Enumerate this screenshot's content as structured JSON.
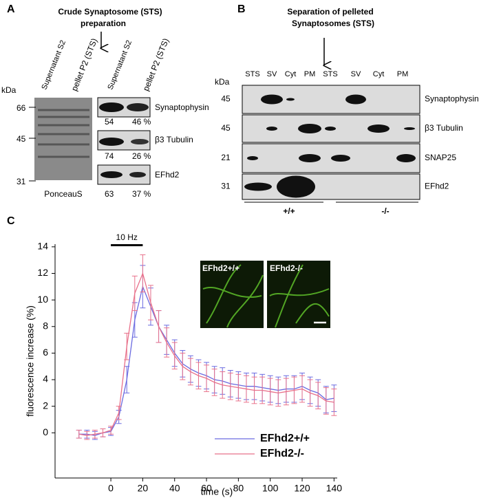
{
  "panel_a": {
    "label": "A",
    "title": [
      "Crude Synaptosome (STS)",
      "preparation"
    ],
    "lanes": [
      "Supernatant S2",
      "pellet P2 (STS)",
      "Supernatant S2",
      "pellet P2 (STS)"
    ],
    "kda": "kDa",
    "markers": [
      "66",
      "45",
      "31"
    ],
    "stain": "PonceauS",
    "blots": [
      {
        "name": "Synaptophysin",
        "percent": [
          "54",
          "46 %"
        ]
      },
      {
        "name": "β3 Tubulin",
        "percent": [
          "74",
          "26 %"
        ]
      },
      {
        "name": "EFhd2",
        "percent": [
          "63",
          "37 %"
        ]
      }
    ]
  },
  "panel_b": {
    "label": "B",
    "title": [
      "Separation of  pelleted",
      "Synaptosomes (STS)"
    ],
    "lanes": [
      "STS",
      "SV",
      "Cyt",
      "PM",
      "STS",
      "SV",
      "Cyt",
      "PM"
    ],
    "kda": "kDa",
    "blots": [
      {
        "name": "Synaptophysin",
        "marker": "45"
      },
      {
        "name": "β3 Tubulin",
        "marker": "45"
      },
      {
        "name": "SNAP25",
        "marker": "21"
      },
      {
        "name": "EFhd2",
        "marker": "31"
      }
    ],
    "genotypes": [
      "+/+",
      "-/-"
    ]
  },
  "panel_c": {
    "label": "C",
    "images": [
      "EFhd2+/+",
      "EFhd2-/-"
    ]
  },
  "chart_data": {
    "type": "line",
    "xlabel": "time (s)",
    "ylabel": "fluorescence increase (%)",
    "stimulus": {
      "label": "10 Hz",
      "x": [
        0,
        20
      ]
    },
    "x": [
      -20,
      -15,
      -10,
      -5,
      0,
      5,
      10,
      15,
      20,
      25,
      30,
      35,
      40,
      45,
      50,
      55,
      60,
      65,
      70,
      75,
      80,
      85,
      90,
      95,
      100,
      105,
      110,
      115,
      120,
      125,
      130,
      135,
      140
    ],
    "series": [
      {
        "name": "EFhd2+/+",
        "color": "#6a6ae0",
        "values": [
          -0.1,
          -0.1,
          -0.2,
          0,
          0.1,
          1.2,
          4.0,
          8.5,
          11.0,
          9.5,
          8.0,
          7.0,
          6.0,
          5.2,
          4.8,
          4.5,
          4.3,
          4.0,
          3.9,
          3.7,
          3.6,
          3.5,
          3.5,
          3.4,
          3.3,
          3.2,
          3.3,
          3.3,
          3.5,
          3.2,
          3.0,
          2.5,
          2.6
        ],
        "errors": [
          0.3,
          0.3,
          0.3,
          0.3,
          0.3,
          0.5,
          1.0,
          1.3,
          1.6,
          1.4,
          1.2,
          1.1,
          1.0,
          1.0,
          1.0,
          1.0,
          1.0,
          1.0,
          1.0,
          1.0,
          1.0,
          1.0,
          1.0,
          1.0,
          1.0,
          1.0,
          1.0,
          1.0,
          1.0,
          1.0,
          1.0,
          1.0,
          1.0
        ]
      },
      {
        "name": "EFhd2-/-",
        "color": "#e8708a",
        "values": [
          -0.1,
          -0.2,
          -0.1,
          0,
          0.2,
          1.5,
          6.5,
          10.5,
          12.0,
          9.8,
          8.0,
          6.8,
          5.8,
          5.0,
          4.6,
          4.3,
          4.1,
          3.8,
          3.6,
          3.5,
          3.4,
          3.3,
          3.2,
          3.2,
          3.1,
          3.0,
          3.1,
          3.2,
          3.3,
          3.0,
          2.8,
          2.4,
          2.3
        ],
        "errors": [
          0.3,
          0.3,
          0.3,
          0.3,
          0.3,
          0.5,
          1.0,
          1.3,
          1.4,
          1.3,
          1.2,
          1.1,
          1.0,
          1.0,
          1.0,
          1.0,
          1.0,
          1.0,
          1.0,
          1.0,
          1.0,
          1.0,
          1.0,
          1.0,
          1.0,
          1.0,
          1.0,
          1.0,
          1.0,
          1.0,
          1.0,
          1.0,
          1.0
        ]
      }
    ],
    "xlim": [
      -35,
      142
    ],
    "ylim": [
      -3.4,
      14.2
    ],
    "xticks": [
      0,
      20,
      40,
      60,
      80,
      100,
      120,
      140
    ],
    "yticks": [
      0,
      2,
      4,
      6,
      8,
      10,
      12,
      14
    ],
    "legend": "lower right"
  }
}
